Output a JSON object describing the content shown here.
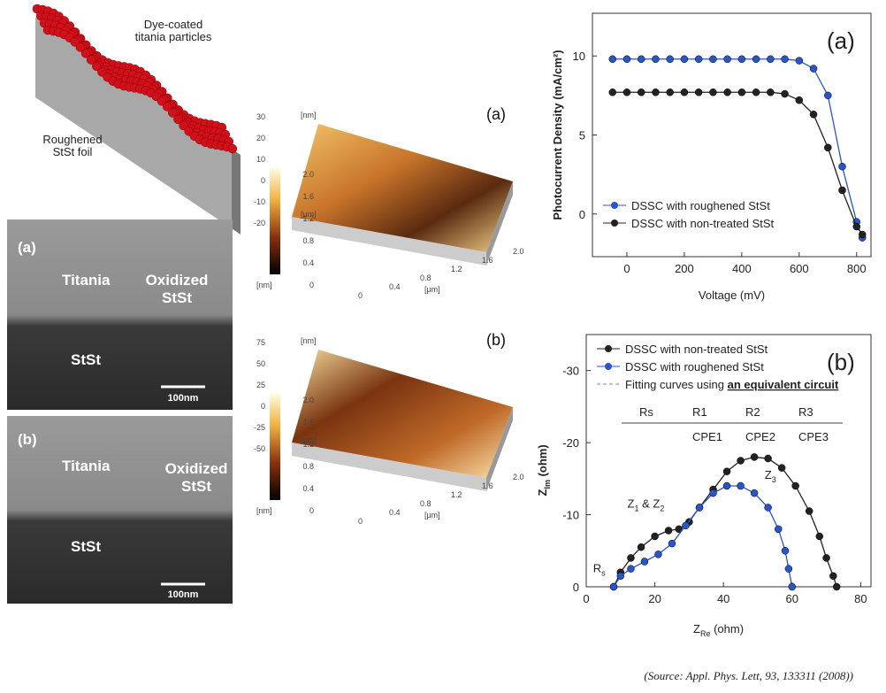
{
  "schematic": {
    "particles_label": [
      "Dye-coated",
      "titania particles"
    ],
    "foil_label": [
      "Roughened",
      "StSt foil"
    ]
  },
  "tem": [
    {
      "label": "(a)",
      "titania": "Titania",
      "oxide": [
        "Oxidized",
        "StSt"
      ],
      "substrate": "StSt",
      "scale": "100nm"
    },
    {
      "label": "(b)",
      "titania": "Titania",
      "oxide": [
        "Oxidized",
        "StSt"
      ],
      "substrate": "StSt",
      "scale": "100nm"
    }
  ],
  "afm": [
    {
      "label": "(a)",
      "unit": "[nm]",
      "colorbar_ticks": [
        "30",
        "20",
        "10",
        "0",
        "-10",
        "-20"
      ],
      "axis_unit": "[μm]",
      "axis_ticks": [
        "0",
        "0.4",
        "0.8",
        "1.2",
        "1.6",
        "2.0"
      ]
    },
    {
      "label": "(b)",
      "unit": "[nm]",
      "colorbar_ticks": [
        "75",
        "50",
        "25",
        "0",
        "-25",
        "-50"
      ],
      "axis_unit": "[μm]",
      "axis_ticks": [
        "0",
        "0.4",
        "0.8",
        "1.2",
        "1.6",
        "2.0"
      ]
    }
  ],
  "chart_data": [
    {
      "type": "line",
      "panel_label": "(a)",
      "x_label": "Voltage (mV)",
      "y_label": "Photocurrent Density (mA/cm²)",
      "x": [
        -50,
        0,
        50,
        100,
        150,
        200,
        250,
        300,
        350,
        400,
        450,
        500,
        550,
        600,
        650,
        700,
        750,
        800,
        820
      ],
      "series": [
        {
          "name": "DSSC with roughened StSt",
          "color": "#2a55c8",
          "values": [
            9.8,
            9.8,
            9.8,
            9.8,
            9.8,
            9.8,
            9.8,
            9.8,
            9.8,
            9.8,
            9.8,
            9.8,
            9.8,
            9.7,
            9.2,
            7.5,
            3,
            -0.5,
            -1.5
          ]
        },
        {
          "name": "DSSC with non-treated StSt",
          "color": "#222222",
          "values": [
            7.7,
            7.7,
            7.7,
            7.7,
            7.7,
            7.7,
            7.7,
            7.7,
            7.7,
            7.7,
            7.7,
            7.7,
            7.6,
            7.2,
            6.3,
            4.2,
            1.5,
            -0.8,
            -1.3
          ]
        }
      ],
      "xlim": [
        -120,
        850
      ],
      "ylim": [
        -2.7,
        12.7
      ],
      "xticks": [
        0,
        200,
        400,
        600,
        800
      ],
      "yticks": [
        0,
        5,
        10
      ],
      "legend": "lower left"
    },
    {
      "type": "scatter",
      "panel_label": "(b)",
      "x_label": [
        "Z",
        "Re",
        " (ohm)"
      ],
      "y_label": [
        "Z",
        "Im",
        " (ohm)"
      ],
      "series": [
        {
          "name": "DSSC with non-treated StSt",
          "color": "#222222",
          "x": [
            8,
            10,
            13,
            16,
            20,
            24,
            27,
            30,
            33,
            37,
            41,
            45,
            49,
            53,
            57,
            61,
            65,
            68,
            70,
            72,
            73
          ],
          "values": [
            0,
            -2,
            -4,
            -5.5,
            -7,
            -7.8,
            -8,
            -9,
            -11,
            -13.5,
            -16,
            -17.5,
            -18,
            -17.8,
            -16.5,
            -14,
            -10.5,
            -7,
            -4,
            -1.5,
            0
          ]
        },
        {
          "name": "DSSC with roughened StSt",
          "color": "#2a55c8",
          "x": [
            8,
            10,
            13,
            17,
            21,
            25,
            29,
            33,
            37,
            41,
            45,
            49,
            53,
            56,
            58,
            59,
            60
          ],
          "values": [
            0,
            -1.5,
            -2.5,
            -3.5,
            -4.5,
            -6,
            -8.5,
            -11,
            -13,
            -14,
            -14,
            -13,
            -11,
            -8,
            -5,
            -2.5,
            0
          ]
        }
      ],
      "fit_legend": [
        "Fitting curves using ",
        "an equivalent circuit"
      ],
      "circuit": [
        "Rs",
        "R1",
        "R2",
        "R3",
        "CPE1",
        "CPE2",
        "CPE3"
      ],
      "annotations": {
        "z12": [
          "Z",
          "1",
          " & Z",
          "2"
        ],
        "z3": [
          "Z",
          "3"
        ],
        "rs": [
          "R",
          "s"
        ]
      },
      "xlim": [
        0,
        83
      ],
      "ylim": [
        0,
        -35
      ],
      "xticks": [
        0,
        20,
        40,
        60,
        80
      ],
      "yticks": [
        0,
        -10,
        -20,
        -30
      ],
      "legend": "upper left"
    }
  ],
  "source": "(Source: Appl. Phys. Lett, 93, 133311 (2008))"
}
